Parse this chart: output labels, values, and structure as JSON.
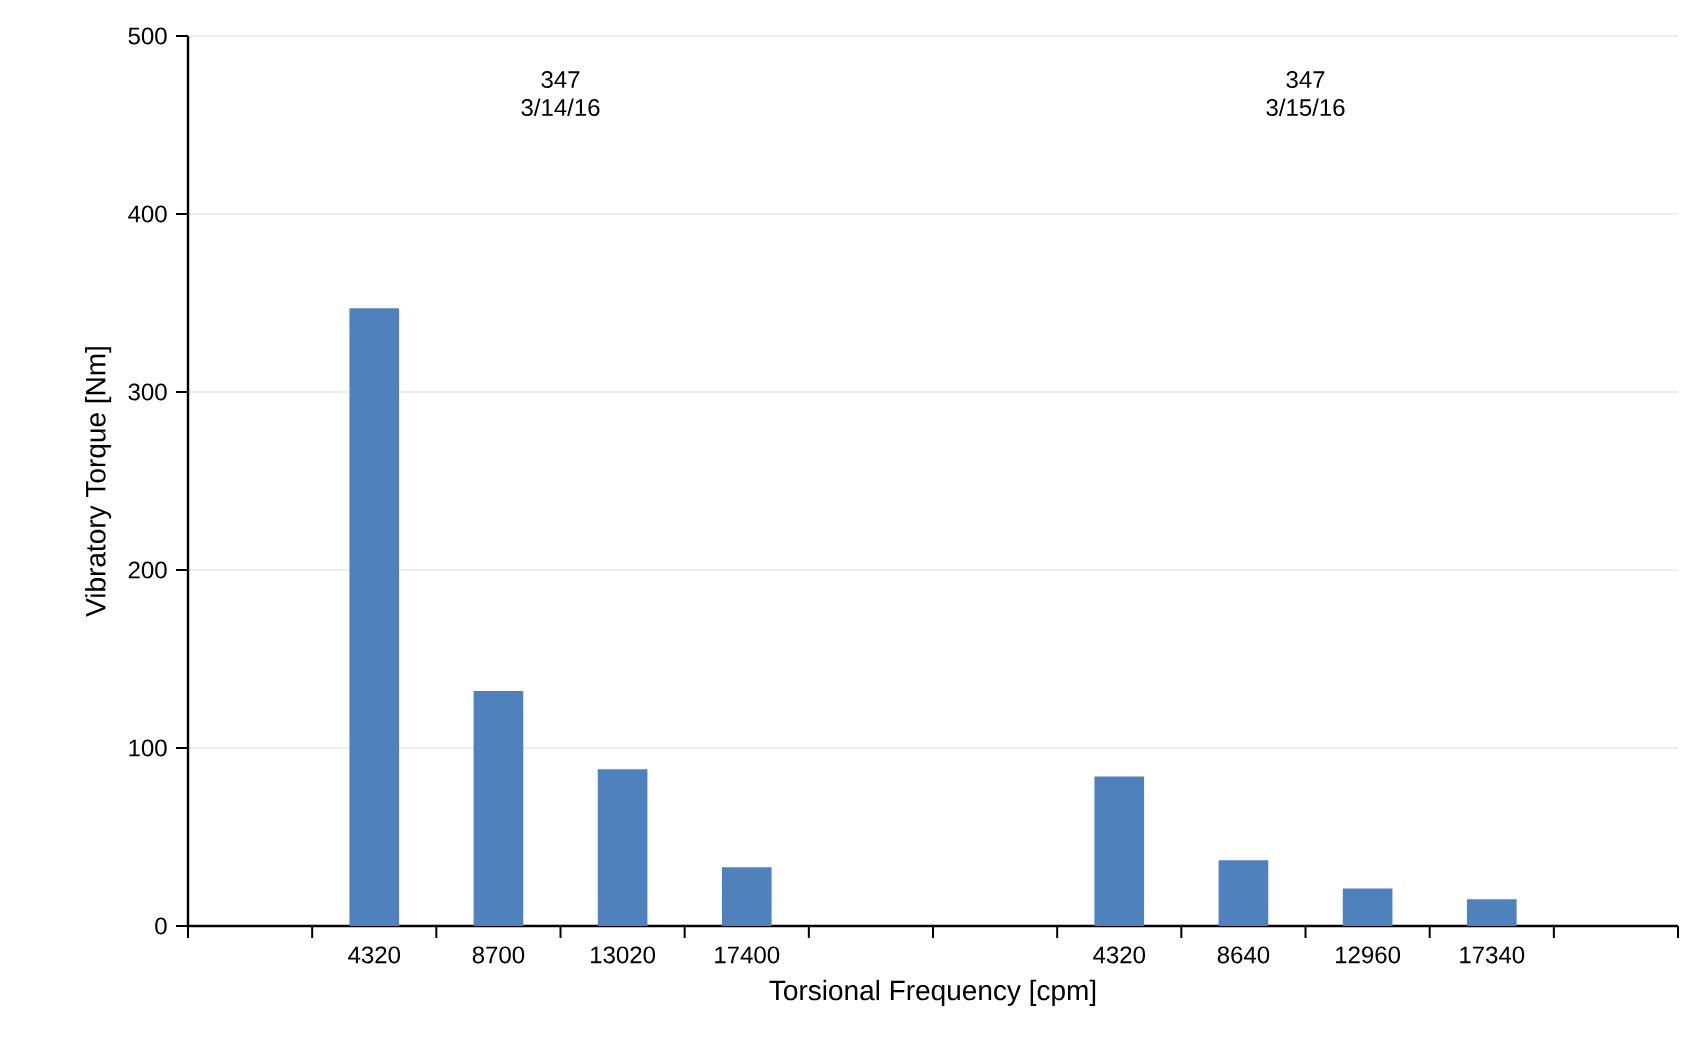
{
  "chart_data": {
    "type": "bar",
    "xlabel": "Torsional Frequency [cpm]",
    "ylabel": "Vibratory Torque [Nm]",
    "categories": [
      null,
      "4320",
      "8700",
      "13020",
      "17400",
      null,
      null,
      "4320",
      "8640",
      "12960",
      "17340",
      null
    ],
    "values": [
      null,
      347,
      132,
      88,
      33,
      null,
      null,
      84,
      37,
      21,
      15,
      null
    ],
    "color": "#4f81bd",
    "ylim": [
      0,
      500
    ],
    "yticks": [
      0,
      100,
      200,
      300,
      400,
      500
    ],
    "grid": "y",
    "annotations": [
      "347 3/14/16",
      "347 3/15/16"
    ]
  }
}
